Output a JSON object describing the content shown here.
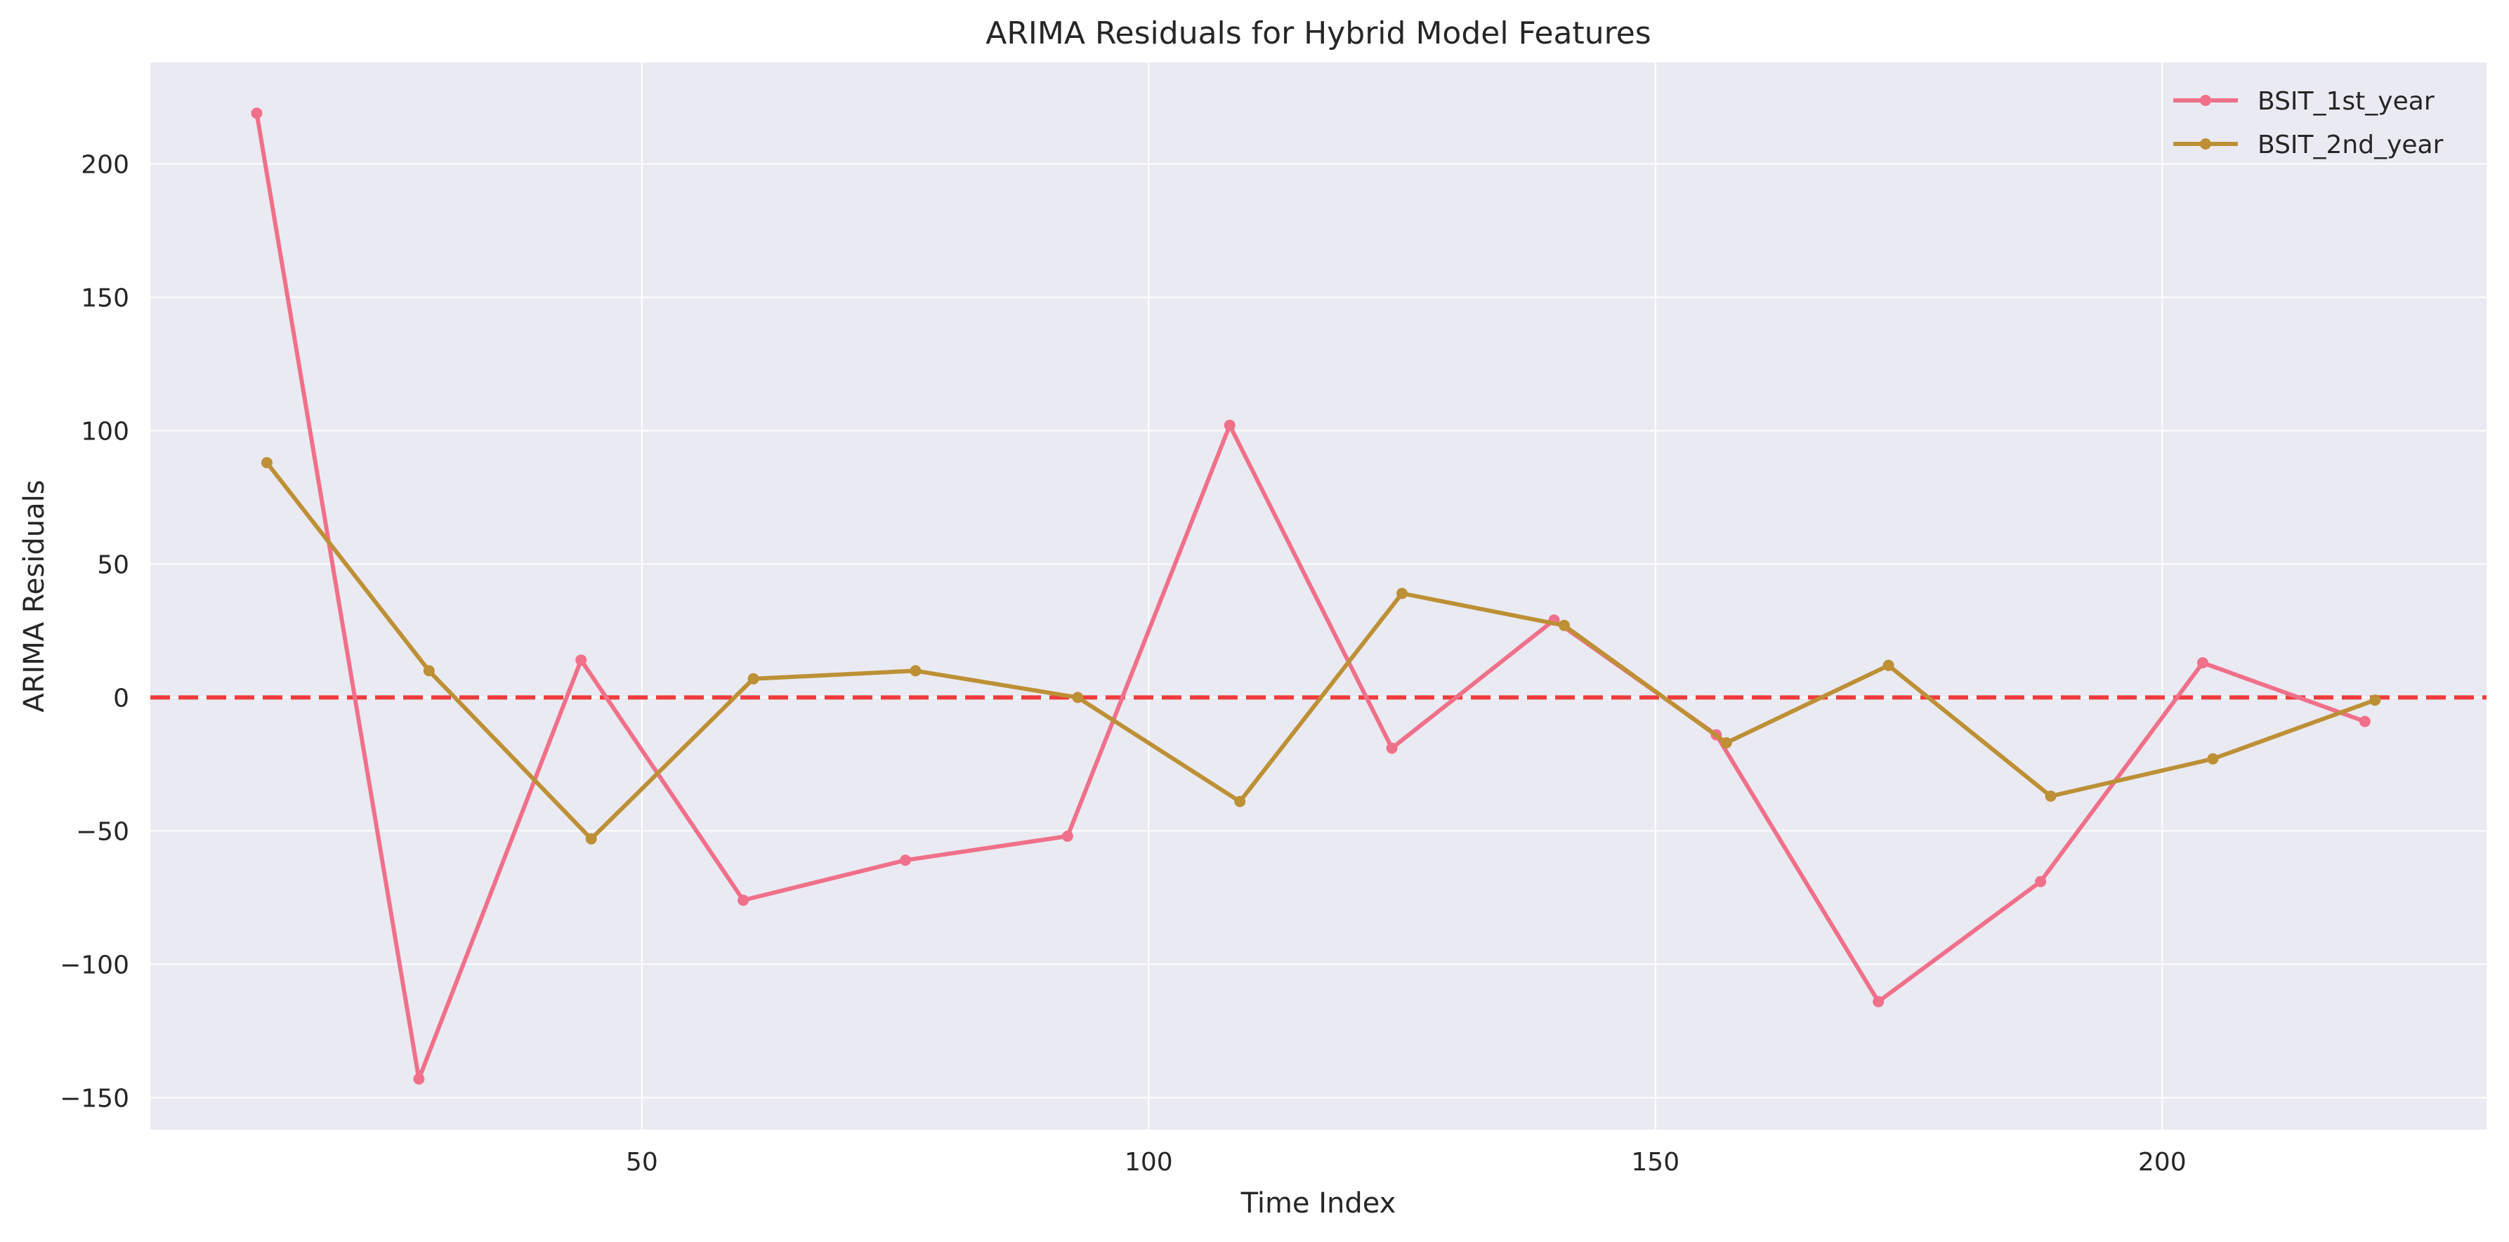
{
  "chart_data": {
    "type": "line",
    "title": "ARIMA Residuals for Hybrid Model Features",
    "xlabel": "Time Index",
    "ylabel": "ARIMA Residuals",
    "xlim": [
      1.5,
      232
    ],
    "ylim": [
      -162,
      238
    ],
    "xticks": [
      50,
      100,
      150,
      200
    ],
    "yticks": [
      -150,
      -100,
      -50,
      0,
      50,
      100,
      150,
      200
    ],
    "xtick_labels": [
      "50",
      "100",
      "150",
      "200"
    ],
    "ytick_labels": [
      "−150",
      "−100",
      "−50",
      "0",
      "50",
      "100",
      "150",
      "200"
    ],
    "grid": true,
    "legend_position": "top-right",
    "reference_line": {
      "y": 0,
      "color": "#f03c3c",
      "style": "dashed"
    },
    "series": [
      {
        "name": "BSIT_1st_year",
        "color": "#f0708a",
        "x": [
          12,
          28,
          44,
          60,
          76,
          92,
          108,
          124,
          140,
          156,
          172,
          188,
          204,
          220
        ],
        "y": [
          219,
          -143,
          14,
          -76,
          -61,
          -52,
          102,
          -19,
          29,
          -14,
          -114,
          -69,
          13,
          -9
        ]
      },
      {
        "name": "BSIT_2nd_year",
        "color": "#bd9036",
        "x": [
          13,
          29,
          45,
          61,
          77,
          93,
          109,
          125,
          141,
          157,
          173,
          189,
          205,
          221
        ],
        "y": [
          88,
          10,
          -53,
          7,
          10,
          0,
          -39,
          39,
          27,
          -17,
          12,
          -37,
          -23,
          -1
        ]
      }
    ]
  }
}
